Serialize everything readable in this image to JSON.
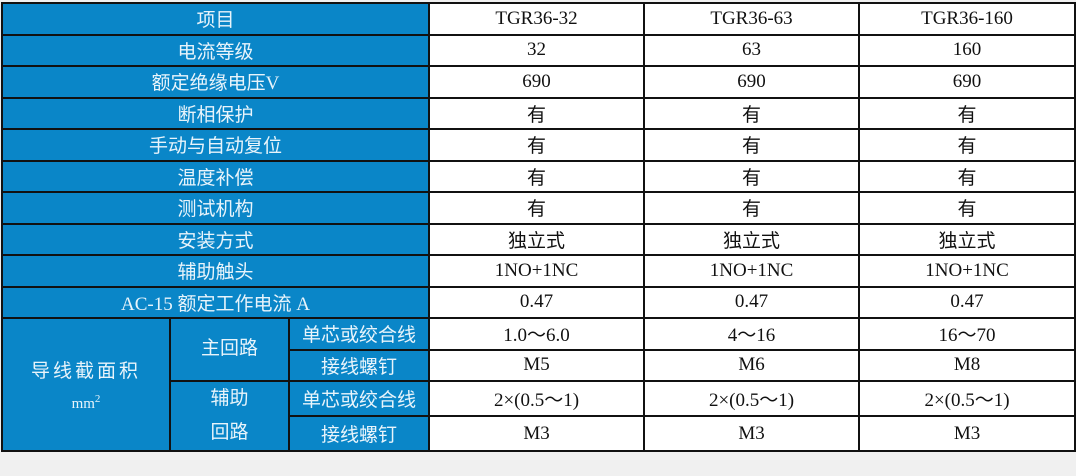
{
  "header": {
    "label": "项目",
    "models": [
      "TGR36-32",
      "TGR36-63",
      "TGR36-160"
    ]
  },
  "rows": [
    {
      "label": "电流等级",
      "values": [
        "32",
        "63",
        "160"
      ]
    },
    {
      "label": "额定绝缘电压V",
      "values": [
        "690",
        "690",
        "690"
      ]
    },
    {
      "label": "断相保护",
      "values": [
        "有",
        "有",
        "有"
      ]
    },
    {
      "label": "手动与自动复位",
      "values": [
        "有",
        "有",
        "有"
      ]
    },
    {
      "label": "温度补偿",
      "values": [
        "有",
        "有",
        "有"
      ]
    },
    {
      "label": "测试机构",
      "values": [
        "有",
        "有",
        "有"
      ]
    },
    {
      "label": "安装方式",
      "values": [
        "独立式",
        "独立式",
        "独立式"
      ]
    },
    {
      "label": "辅助触头",
      "values": [
        "1NO+1NC",
        "1NO+1NC",
        "1NO+1NC"
      ]
    },
    {
      "label": "AC-15 额定工作电流 A",
      "values": [
        "0.47",
        "0.47",
        "0.47"
      ]
    }
  ],
  "wire": {
    "label": "导线截面积",
    "unit": "mm",
    "unit_sup": "2",
    "main_circuit": "主回路",
    "aux_circuit_1": "辅助",
    "aux_circuit_2": "回路",
    "sub_rows": [
      {
        "label": "单芯或绞合线",
        "values": [
          "1.0～6.0",
          "4～16",
          "16～70"
        ]
      },
      {
        "label": "接线螺钉",
        "values": [
          "M5",
          "M6",
          "M8"
        ]
      },
      {
        "label": "单芯或绞合线",
        "values": [
          "2×(0.5～1)",
          "2×(0.5～1)",
          "2×(0.5～1)"
        ]
      },
      {
        "label": "接线螺钉",
        "values": [
          "M3",
          "M3",
          "M3"
        ]
      }
    ]
  },
  "colors": {
    "header_bg": "#0a86c8",
    "border": "#111111"
  }
}
